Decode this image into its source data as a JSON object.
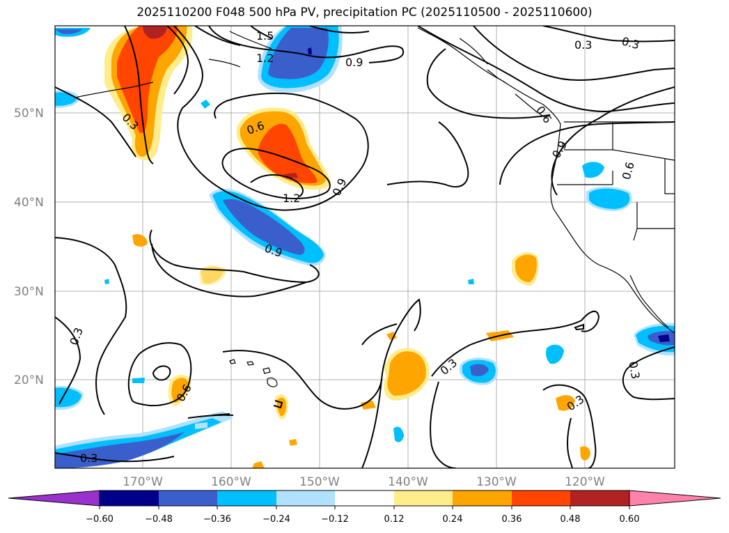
{
  "title": "2025110200 F048 500 hPa PV, precipitation PC (2025110500 - 2025110600)",
  "map": {
    "lat_labels": [
      "50°N",
      "40°N",
      "30°N",
      "20°N"
    ],
    "lon_labels": [
      "170°W",
      "160°W",
      "150°W",
      "140°W",
      "130°W",
      "120°W"
    ],
    "contour_labels": [
      "1.5",
      "1.2",
      "0.9",
      "0.3",
      "0.3",
      "0.3",
      "0.6",
      "0.6",
      "0.9",
      "0.6",
      "0.9",
      "1.2",
      "0.9",
      "0.3",
      "0.3",
      "0.3",
      "0.6",
      "0.3",
      "0.3",
      "0.3",
      "0.3"
    ]
  },
  "colorbar": {
    "ticks": [
      "−0.60",
      "−0.48",
      "−0.36",
      "−0.24",
      "−0.12",
      "0.12",
      "0.24",
      "0.36",
      "0.48",
      "0.60"
    ],
    "colors": [
      "#9932cc",
      "#00008b",
      "#3a5fcd",
      "#00bfff",
      "#b0e2ff",
      "#ffffff",
      "#ffec8b",
      "#ffa500",
      "#ff4500",
      "#b22222",
      "#ff82ab"
    ]
  }
}
